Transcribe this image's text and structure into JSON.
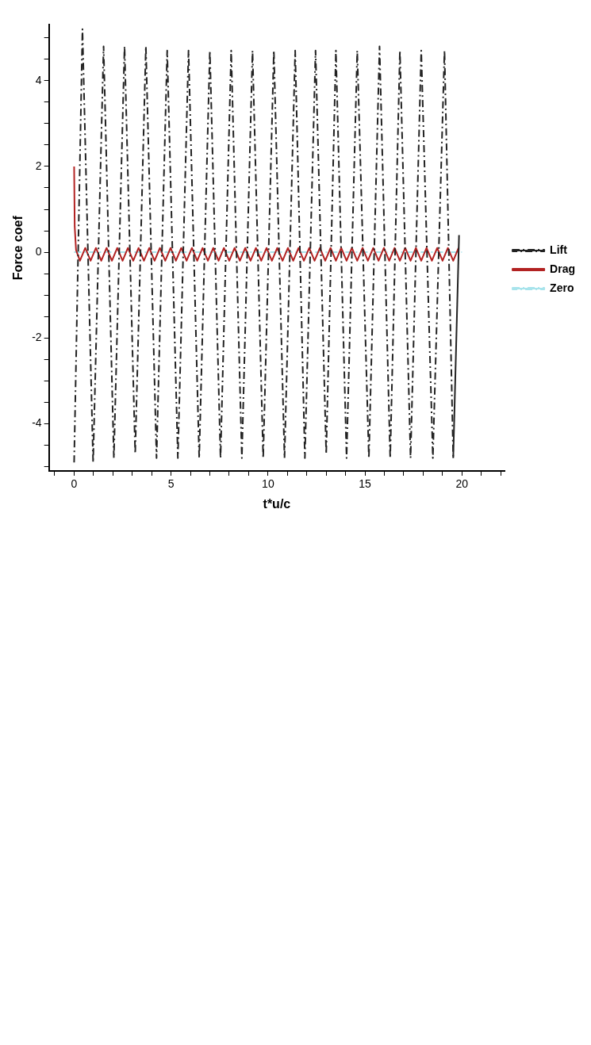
{
  "chart_data": {
    "type": "line",
    "xlabel": "t*u/c",
    "ylabel": "Force coef",
    "xlim": [
      -1.3,
      22.2
    ],
    "ylim": [
      -5.1,
      5.3
    ],
    "xticks": [
      {
        "value": -1,
        "label": null
      },
      0,
      {
        "value": 1,
        "label": null
      },
      {
        "value": 2,
        "label": null
      },
      {
        "value": 3,
        "label": null
      },
      {
        "value": 4,
        "label": null
      },
      5,
      {
        "value": 6,
        "label": null
      },
      {
        "value": 7,
        "label": null
      },
      {
        "value": 8,
        "label": null
      },
      {
        "value": 9,
        "label": null
      },
      10,
      {
        "value": 11,
        "label": null
      },
      {
        "value": 12,
        "label": null
      },
      {
        "value": 13,
        "label": null
      },
      {
        "value": 14,
        "label": null
      },
      15,
      {
        "value": 16,
        "label": null
      },
      {
        "value": 17,
        "label": null
      },
      {
        "value": 18,
        "label": null
      },
      {
        "value": 19,
        "label": null
      },
      20,
      {
        "value": 21,
        "label": null
      },
      {
        "value": 22,
        "label": null
      }
    ],
    "yticks": [
      {
        "value": -5,
        "label": null
      },
      {
        "value": -4.5,
        "label": null
      },
      -4,
      {
        "value": -3.5,
        "label": null
      },
      {
        "value": -3,
        "label": null
      },
      {
        "value": -2.5,
        "label": null
      },
      -2,
      {
        "value": -1.5,
        "label": null
      },
      {
        "value": -1,
        "label": null
      },
      {
        "value": -0.5,
        "label": null
      },
      0,
      {
        "value": 0.5,
        "label": null
      },
      {
        "value": 1,
        "label": null
      },
      {
        "value": 1.5,
        "label": null
      },
      2,
      {
        "value": 2.5,
        "label": null
      },
      {
        "value": 3,
        "label": null
      },
      {
        "value": 3.5,
        "label": null
      },
      4,
      {
        "value": 4.5,
        "label": null
      },
      {
        "value": 5,
        "label": null
      }
    ],
    "legend": "right",
    "marker": "none",
    "series": [
      {
        "name": "Lift",
        "color": "#222222",
        "line_style": "dashed",
        "x": [
          0,
          0.43,
          0.98,
          1.52,
          2.05,
          2.6,
          3.15,
          3.7,
          4.25,
          4.8,
          5.35,
          5.9,
          6.45,
          7.0,
          7.55,
          8.1,
          8.65,
          9.2,
          9.75,
          10.3,
          10.85,
          11.4,
          11.9,
          12.45,
          13.0,
          13.5,
          14.05,
          14.6,
          15.2,
          15.75,
          16.3,
          16.8,
          17.35,
          17.9,
          18.5,
          19.1,
          19.55,
          19.85
        ],
        "values": [
          -4.9,
          5.2,
          -4.9,
          4.8,
          -4.8,
          4.8,
          -4.7,
          4.8,
          -4.8,
          4.7,
          -4.8,
          4.7,
          -4.8,
          4.7,
          -4.8,
          4.7,
          -4.8,
          4.7,
          -4.8,
          4.7,
          -4.8,
          4.7,
          -4.8,
          4.7,
          -4.7,
          4.7,
          -4.8,
          4.7,
          -4.8,
          4.8,
          -4.8,
          4.7,
          -4.8,
          4.7,
          -4.8,
          4.7,
          -4.8,
          0.4
        ]
      },
      {
        "name": "Drag",
        "color": "#b22222",
        "line_style": "solid",
        "x": [
          0,
          0.03,
          0.1,
          0.3,
          0.575,
          0.85,
          1.125,
          1.4,
          1.675,
          1.95,
          2.225,
          2.5,
          2.775,
          3.05,
          3.325,
          3.6,
          3.875,
          4.15,
          4.425,
          4.7,
          4.975,
          5.25,
          5.525,
          5.8,
          6.075,
          6.35,
          6.625,
          6.9,
          7.175,
          7.45,
          7.725,
          8.0,
          8.275,
          8.55,
          8.825,
          9.1,
          9.375,
          9.65,
          9.925,
          10.2,
          10.475,
          10.75,
          11.025,
          11.3,
          11.575,
          11.85,
          12.125,
          12.4,
          12.675,
          12.95,
          13.225,
          13.5,
          13.775,
          14.05,
          14.325,
          14.6,
          14.875,
          15.15,
          15.425,
          15.7,
          15.975,
          16.25,
          16.525,
          16.8,
          17.075,
          17.35,
          17.625,
          17.9,
          18.175,
          18.45,
          18.725,
          19.0,
          19.275,
          19.55,
          19.825
        ],
        "values": [
          2,
          0.6,
          0.05,
          -0.2,
          0.1,
          -0.2,
          0.1,
          -0.2,
          0.1,
          -0.2,
          0.1,
          -0.2,
          0.1,
          -0.2,
          0.1,
          -0.2,
          0.1,
          -0.2,
          0.1,
          -0.2,
          0.1,
          -0.2,
          0.1,
          -0.2,
          0.1,
          -0.2,
          0.1,
          -0.2,
          0.1,
          -0.2,
          0.1,
          -0.2,
          0.1,
          -0.2,
          0.1,
          -0.2,
          0.1,
          -0.2,
          0.1,
          -0.2,
          0.1,
          -0.2,
          0.1,
          -0.2,
          0.1,
          -0.2,
          0.1,
          -0.2,
          0.1,
          -0.2,
          0.1,
          -0.2,
          0.1,
          -0.2,
          0.1,
          -0.2,
          0.1,
          -0.2,
          0.1,
          -0.2,
          0.1,
          -0.2,
          0.1,
          -0.2,
          0.1,
          -0.2,
          0.1,
          -0.2,
          0.1,
          -0.2,
          0.1,
          -0.2,
          0.1,
          -0.2,
          0.1
        ]
      },
      {
        "name": "Zero",
        "color": "#a8e4ec",
        "line_style": "dashed",
        "x": [
          0,
          20
        ],
        "values": [
          0,
          0
        ]
      }
    ]
  }
}
